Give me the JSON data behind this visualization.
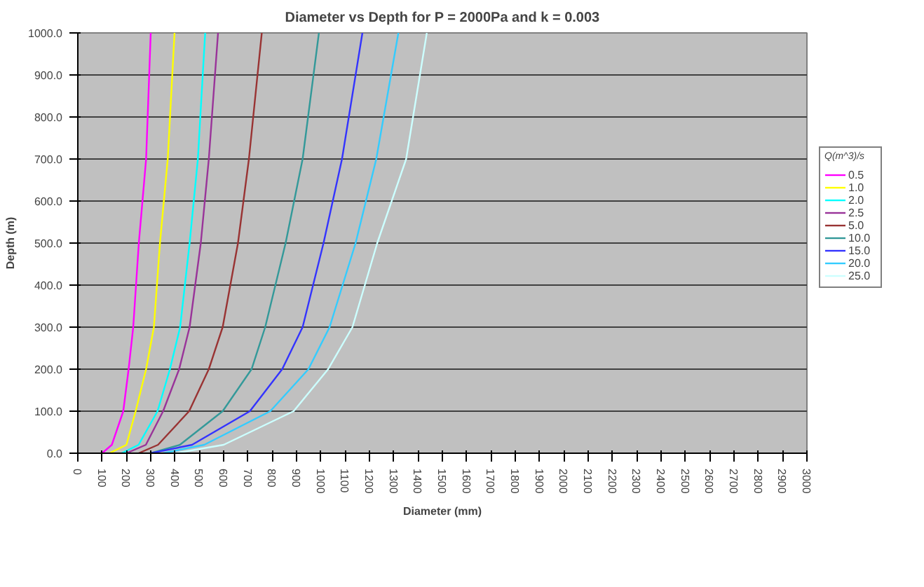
{
  "chart_data": {
    "type": "line",
    "title": "Diameter vs Depth for P = 2000Pa and k = 0.003",
    "xlabel": "Diameter (mm)",
    "ylabel": "Depth (m)",
    "legend_title": "Q(m^3)/s",
    "legend": "right",
    "grid": "y",
    "marker": "none",
    "line_style": "solid",
    "xlim": [
      0,
      3000
    ],
    "xticks": [
      0,
      100,
      200,
      300,
      400,
      500,
      600,
      700,
      800,
      900,
      1000,
      1100,
      1200,
      1300,
      1400,
      1500,
      1600,
      1700,
      1800,
      1900,
      2000,
      2100,
      2200,
      2300,
      2400,
      2500,
      2600,
      2700,
      2800,
      2900,
      3000
    ],
    "ylim": [
      0,
      1000
    ],
    "yticks": [
      {
        "value": 0,
        "label": "0.0"
      },
      {
        "value": 100,
        "label": "100.0"
      },
      {
        "value": 200,
        "label": "200.0"
      },
      {
        "value": 300,
        "label": "300.0"
      },
      {
        "value": 400,
        "label": "400.0"
      },
      {
        "value": 500,
        "label": "500.0"
      },
      {
        "value": 600,
        "label": "600.0"
      },
      {
        "value": 700,
        "label": "700.0"
      },
      {
        "value": 800,
        "label": "800.0"
      },
      {
        "value": 900,
        "label": "900.0"
      },
      {
        "value": 1000,
        "label": "1000.0"
      }
    ],
    "series": [
      {
        "name": "0.5",
        "color": "#ff00ff",
        "x": [
          100,
          140,
          187,
          209,
          228,
          251,
          281,
          300
        ],
        "values": [
          0,
          20,
          100,
          200,
          300,
          500,
          700,
          1000
        ]
      },
      {
        "name": "1.0",
        "color": "#ffff00",
        "x": [
          130,
          200,
          238,
          281,
          313,
          338,
          370,
          398
        ],
        "values": [
          0,
          20,
          100,
          200,
          300,
          500,
          700,
          1000
        ]
      },
      {
        "name": "2.0",
        "color": "#00ffff",
        "x": [
          180,
          250,
          328,
          379,
          421,
          460,
          494,
          524
        ],
        "values": [
          0,
          20,
          100,
          200,
          300,
          500,
          700,
          1000
        ]
      },
      {
        "name": "2.5",
        "color": "#993399",
        "x": [
          200,
          280,
          351,
          417,
          460,
          506,
          539,
          577
        ],
        "values": [
          0,
          20,
          100,
          200,
          300,
          500,
          700,
          1000
        ]
      },
      {
        "name": "5.0",
        "color": "#993333",
        "x": [
          250,
          330,
          458,
          539,
          596,
          659,
          704,
          757
        ],
        "values": [
          0,
          20,
          100,
          200,
          300,
          500,
          700,
          1000
        ]
      },
      {
        "name": "10.0",
        "color": "#339999",
        "x": [
          300,
          420,
          596,
          715,
          771,
          855,
          925,
          992
        ],
        "values": [
          0,
          20,
          100,
          200,
          300,
          500,
          700,
          1000
        ]
      },
      {
        "name": "15.0",
        "color": "#3333ff",
        "x": [
          300,
          470,
          708,
          841,
          925,
          1011,
          1087,
          1171
        ],
        "values": [
          0,
          20,
          100,
          200,
          300,
          500,
          700,
          1000
        ]
      },
      {
        "name": "20.0",
        "color": "#33ccff",
        "x": [
          350,
          520,
          792,
          949,
          1036,
          1143,
          1228,
          1319
        ],
        "values": [
          0,
          20,
          100,
          200,
          300,
          500,
          700,
          1000
        ]
      },
      {
        "name": "25.0",
        "color": "#ccffff",
        "x": [
          400,
          600,
          888,
          1030,
          1130,
          1232,
          1351,
          1436
        ],
        "values": [
          0,
          20,
          100,
          200,
          300,
          500,
          700,
          1000
        ]
      }
    ]
  }
}
